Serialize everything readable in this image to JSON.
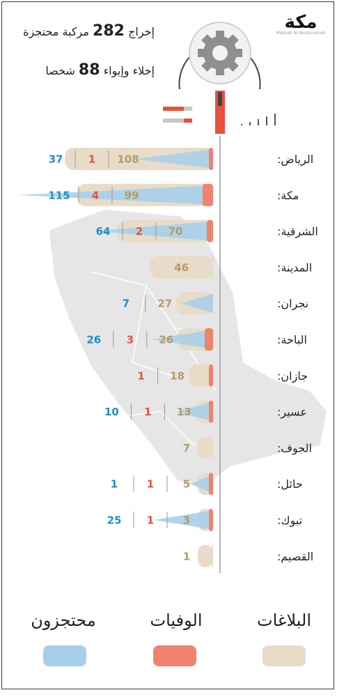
{
  "header": {
    "line1_pre": "إخراج",
    "line1_num": "282",
    "line1_post": "مركبة محتجزة",
    "line2_pre": "إخلاء وإيواء",
    "line2_num": "88",
    "line2_post": "شخصا"
  },
  "logo": {
    "mark": "مكة",
    "sub": "Makkah Al-Mukarramah"
  },
  "colors": {
    "reports": "#e8dcc8",
    "deaths": "#f0826e",
    "detained": "#a7cfea",
    "reports_text": "#b59a6a",
    "deaths_text": "#e8503c",
    "detained_text": "#1e8fc8",
    "axis": "#999999"
  },
  "chart_data": {
    "type": "bar",
    "categories": [
      "الرياض:",
      "مكة:",
      "الشرقية:",
      "المدينة:",
      "نجران:",
      "الباحة:",
      "جازان:",
      "عسير:",
      "الجوف:",
      "حائل:",
      "تبوك:",
      "القصيم:"
    ],
    "series": [
      {
        "name": "البلاغات",
        "values": [
          108,
          99,
          70,
          46,
          27,
          26,
          18,
          13,
          7,
          5,
          3,
          1
        ]
      },
      {
        "name": "الوفيات",
        "values": [
          1,
          4,
          2,
          0,
          0,
          3,
          1,
          1,
          0,
          1,
          1,
          0
        ]
      },
      {
        "name": "محتجزون",
        "values": [
          37,
          115,
          64,
          0,
          7,
          26,
          0,
          10,
          0,
          1,
          25,
          0
        ]
      }
    ]
  }
}
